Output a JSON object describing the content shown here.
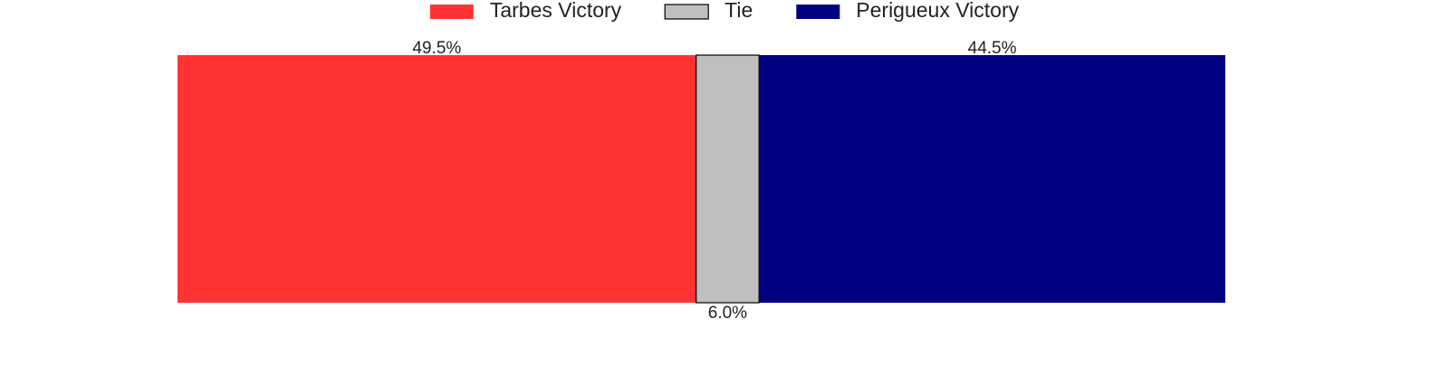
{
  "chart_data": {
    "type": "stacked_bar",
    "orientation": "horizontal",
    "categories": [
      null
    ],
    "xlim": [
      0,
      100
    ],
    "legend": "top",
    "series": [
      {
        "name": "Tarbes Victory",
        "color": "#ff3333",
        "values": [
          49.5
        ],
        "value_labels": [
          "49.5%"
        ]
      },
      {
        "name": "Tie",
        "color": "#bfbfbf",
        "edgecolor": "#000000",
        "values": [
          6.0
        ],
        "value_labels": [
          "6.0%"
        ]
      },
      {
        "name": "Perigueux Victory",
        "color": "#000080",
        "values": [
          44.5
        ],
        "value_labels": [
          "44.5%"
        ]
      }
    ]
  }
}
